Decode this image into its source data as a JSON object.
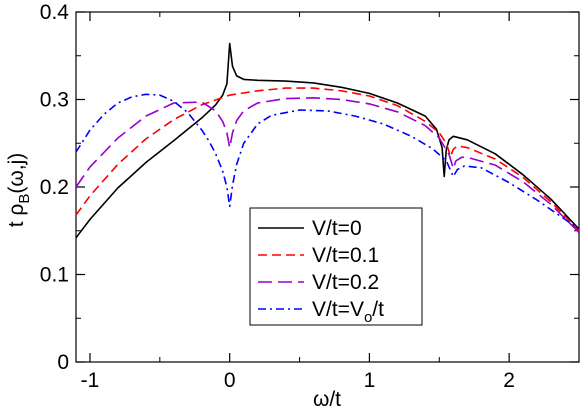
{
  "chart_data": {
    "type": "line",
    "xlabel": "ω/t",
    "ylabel_parts": {
      "a": "t ρ",
      "sub": "B",
      "b": "(ω,j)"
    },
    "xlim": [
      -1.1,
      2.5
    ],
    "ylim": [
      0,
      0.4
    ],
    "x_ticks": [
      {
        "v": -1,
        "label": "-1"
      },
      {
        "v": 0,
        "label": "0"
      },
      {
        "v": 1,
        "label": "1"
      },
      {
        "v": 2,
        "label": "2"
      }
    ],
    "y_ticks": [
      {
        "v": 0,
        "label": "0"
      },
      {
        "v": 0.1,
        "label": "0.1"
      },
      {
        "v": 0.2,
        "label": "0.2"
      },
      {
        "v": 0.3,
        "label": "0.3"
      },
      {
        "v": 0.4,
        "label": "0.4"
      }
    ],
    "legend_position": "lower-center",
    "series": [
      {
        "name": "V/t=0",
        "legend_parts": {
          "a": "V/t=0",
          "sub": "",
          "b": ""
        },
        "color": "#000000",
        "dash": "",
        "x": [
          -1.1,
          -1.0,
          -0.8,
          -0.6,
          -0.4,
          -0.2,
          -0.1,
          -0.05,
          -0.02,
          0.0,
          0.02,
          0.05,
          0.1,
          0.2,
          0.4,
          0.6,
          0.8,
          1.0,
          1.2,
          1.4,
          1.48,
          1.52,
          1.535,
          1.55,
          1.57,
          1.6,
          1.7,
          1.9,
          2.1,
          2.3,
          2.5
        ],
        "y": [
          0.142,
          0.163,
          0.199,
          0.228,
          0.253,
          0.279,
          0.294,
          0.305,
          0.318,
          0.364,
          0.338,
          0.327,
          0.323,
          0.322,
          0.321,
          0.319,
          0.314,
          0.307,
          0.296,
          0.281,
          0.266,
          0.245,
          0.212,
          0.243,
          0.254,
          0.258,
          0.254,
          0.238,
          0.214,
          0.186,
          0.152
        ]
      },
      {
        "name": "V/t=0.1",
        "legend_parts": {
          "a": "V/t=0.1",
          "sub": "",
          "b": ""
        },
        "color": "#ff0000",
        "dash": "9,5",
        "x": [
          -1.1,
          -1.0,
          -0.8,
          -0.6,
          -0.4,
          -0.2,
          0.0,
          0.2,
          0.4,
          0.6,
          0.8,
          1.0,
          1.2,
          1.4,
          1.5,
          1.55,
          1.58,
          1.6,
          1.63,
          1.7,
          1.9,
          2.1,
          2.3,
          2.5
        ],
        "y": [
          0.168,
          0.19,
          0.226,
          0.255,
          0.277,
          0.294,
          0.305,
          0.31,
          0.313,
          0.313,
          0.31,
          0.304,
          0.293,
          0.275,
          0.262,
          0.25,
          0.235,
          0.243,
          0.247,
          0.245,
          0.232,
          0.211,
          0.183,
          0.15
        ]
      },
      {
        "name": "V/t=0.2",
        "legend_parts": {
          "a": "V/t=0.2",
          "sub": "",
          "b": ""
        },
        "color": "#9900cc",
        "dash": "14,6",
        "x": [
          -1.1,
          -1.0,
          -0.8,
          -0.6,
          -0.4,
          -0.2,
          -0.1,
          -0.05,
          -0.02,
          0.0,
          0.02,
          0.05,
          0.1,
          0.2,
          0.4,
          0.6,
          0.8,
          1.0,
          1.2,
          1.4,
          1.5,
          1.57,
          1.6,
          1.62,
          1.66,
          1.7,
          1.9,
          2.1,
          2.3,
          2.5
        ],
        "y": [
          0.2,
          0.223,
          0.256,
          0.281,
          0.296,
          0.297,
          0.287,
          0.275,
          0.262,
          0.245,
          0.262,
          0.276,
          0.287,
          0.296,
          0.301,
          0.302,
          0.3,
          0.295,
          0.286,
          0.27,
          0.256,
          0.237,
          0.221,
          0.23,
          0.234,
          0.234,
          0.225,
          0.206,
          0.18,
          0.148
        ]
      },
      {
        "name": "V/t=V_o/t",
        "legend_parts": {
          "a": "V/t=V",
          "sub": "o",
          "b": "/t"
        },
        "color": "#0000ff",
        "dash": "8,4,2,4",
        "x": [
          -1.1,
          -1.0,
          -0.9,
          -0.8,
          -0.7,
          -0.6,
          -0.5,
          -0.4,
          -0.3,
          -0.2,
          -0.15,
          -0.1,
          -0.05,
          -0.02,
          0.0,
          0.02,
          0.05,
          0.1,
          0.2,
          0.3,
          0.5,
          0.7,
          0.9,
          1.1,
          1.3,
          1.45,
          1.55,
          1.6,
          1.63,
          1.68,
          1.8,
          2.0,
          2.2,
          2.4,
          2.5
        ],
        "y": [
          0.24,
          0.265,
          0.283,
          0.296,
          0.303,
          0.306,
          0.305,
          0.298,
          0.285,
          0.265,
          0.253,
          0.238,
          0.218,
          0.2,
          0.178,
          0.202,
          0.226,
          0.25,
          0.272,
          0.282,
          0.288,
          0.287,
          0.281,
          0.272,
          0.258,
          0.244,
          0.23,
          0.212,
          0.22,
          0.224,
          0.222,
          0.205,
          0.185,
          0.163,
          0.152
        ]
      }
    ]
  }
}
